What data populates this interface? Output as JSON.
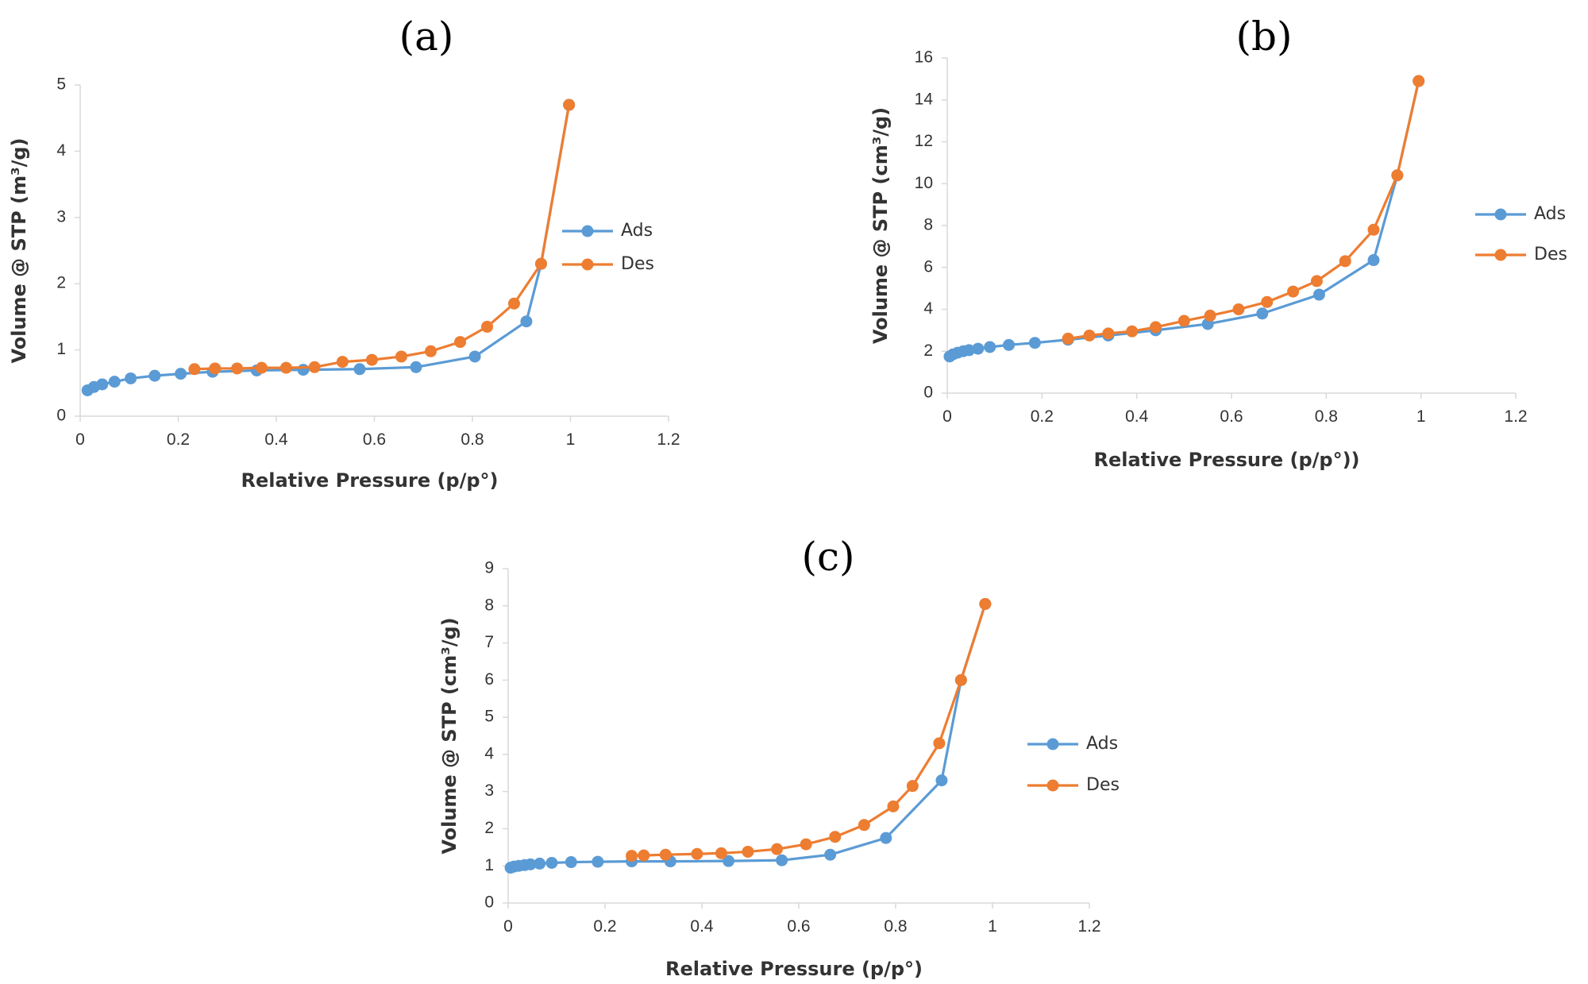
{
  "chart_data": [
    {
      "type": "line",
      "panel_label": "(a)",
      "title": "",
      "xlabel": "Relative Pressure (p/p°)",
      "ylabel": "Volume @ STP (m³/g)",
      "xlim": [
        0,
        1.2
      ],
      "ylim": [
        0,
        5
      ],
      "x_ticks": [
        "0",
        "0.2",
        "0.4",
        "0.6",
        "0.8",
        "1",
        "1.2"
      ],
      "y_ticks": [
        "0",
        "1",
        "2",
        "3",
        "4",
        "5"
      ],
      "grid": false,
      "legend_position": "right",
      "series": [
        {
          "name": "Ads",
          "color": "#5b9bd5",
          "x": [
            0.015,
            0.028,
            0.045,
            0.07,
            0.103,
            0.152,
            0.205,
            0.27,
            0.36,
            0.455,
            0.57,
            0.685,
            0.805,
            0.91,
            0.94,
            0.997
          ],
          "y": [
            0.39,
            0.44,
            0.48,
            0.52,
            0.57,
            0.61,
            0.64,
            0.67,
            0.69,
            0.7,
            0.71,
            0.74,
            0.9,
            1.43,
            2.3,
            4.7
          ]
        },
        {
          "name": "Des",
          "color": "#ed7d31",
          "x": [
            0.997,
            0.94,
            0.885,
            0.83,
            0.775,
            0.715,
            0.655,
            0.595,
            0.535,
            0.478,
            0.42,
            0.37,
            0.32,
            0.275,
            0.233
          ],
          "y": [
            4.7,
            2.3,
            1.7,
            1.35,
            1.12,
            0.98,
            0.9,
            0.85,
            0.82,
            0.74,
            0.73,
            0.73,
            0.72,
            0.72,
            0.71
          ]
        }
      ]
    },
    {
      "type": "line",
      "panel_label": "(b)",
      "title": "",
      "xlabel": "Relative Pressure (p/p°))",
      "ylabel": "Volume @ STP (cm³/g)",
      "xlim": [
        0,
        1.2
      ],
      "ylim": [
        0,
        16
      ],
      "x_ticks": [
        "0",
        "0.2",
        "0.4",
        "0.6",
        "0.8",
        "1",
        "1.2"
      ],
      "y_ticks": [
        "0",
        "2",
        "4",
        "6",
        "8",
        "10",
        "12",
        "14",
        "16"
      ],
      "grid": false,
      "legend_position": "right",
      "series": [
        {
          "name": "Ads",
          "color": "#5b9bd5",
          "x": [
            0.005,
            0.012,
            0.022,
            0.034,
            0.046,
            0.065,
            0.09,
            0.13,
            0.185,
            0.255,
            0.34,
            0.44,
            0.55,
            0.665,
            0.785,
            0.9,
            0.95,
            0.995
          ],
          "y": [
            1.75,
            1.85,
            1.93,
            2.0,
            2.05,
            2.12,
            2.2,
            2.3,
            2.4,
            2.55,
            2.75,
            3.0,
            3.3,
            3.8,
            4.7,
            6.35,
            10.4,
            14.9
          ]
        },
        {
          "name": "Des",
          "color": "#ed7d31",
          "x": [
            0.995,
            0.95,
            0.9,
            0.84,
            0.78,
            0.73,
            0.675,
            0.615,
            0.555,
            0.5,
            0.44,
            0.39,
            0.34,
            0.3,
            0.255
          ],
          "y": [
            14.9,
            10.4,
            7.8,
            6.3,
            5.35,
            4.85,
            4.35,
            4.0,
            3.7,
            3.45,
            3.15,
            2.95,
            2.85,
            2.75,
            2.6
          ]
        }
      ]
    },
    {
      "type": "line",
      "panel_label": "(c)",
      "title": "",
      "xlabel": "Relative Pressure (p/p°)",
      "ylabel": "Volume @ STP (cm³/g)",
      "xlim": [
        0,
        1.2
      ],
      "ylim": [
        0,
        9
      ],
      "x_ticks": [
        "0",
        "0.2",
        "0.4",
        "0.6",
        "0.8",
        "1",
        "1.2"
      ],
      "y_ticks": [
        "0",
        "1",
        "2",
        "3",
        "4",
        "5",
        "6",
        "7",
        "8",
        "9"
      ],
      "grid": false,
      "legend_position": "right",
      "series": [
        {
          "name": "Ads",
          "color": "#5b9bd5",
          "x": [
            0.005,
            0.012,
            0.022,
            0.034,
            0.046,
            0.065,
            0.09,
            0.13,
            0.185,
            0.255,
            0.335,
            0.455,
            0.565,
            0.665,
            0.78,
            0.895,
            0.935,
            0.985
          ],
          "y": [
            0.95,
            0.98,
            1.0,
            1.02,
            1.04,
            1.06,
            1.08,
            1.1,
            1.11,
            1.12,
            1.12,
            1.13,
            1.15,
            1.3,
            1.75,
            3.3,
            6.0,
            8.05
          ]
        },
        {
          "name": "Des",
          "color": "#ed7d31",
          "x": [
            0.985,
            0.935,
            0.89,
            0.835,
            0.795,
            0.735,
            0.675,
            0.615,
            0.555,
            0.495,
            0.44,
            0.39,
            0.325,
            0.28,
            0.255
          ],
          "y": [
            8.05,
            6.0,
            4.3,
            3.15,
            2.6,
            2.1,
            1.78,
            1.58,
            1.45,
            1.38,
            1.34,
            1.32,
            1.3,
            1.28,
            1.27
          ]
        }
      ]
    }
  ]
}
